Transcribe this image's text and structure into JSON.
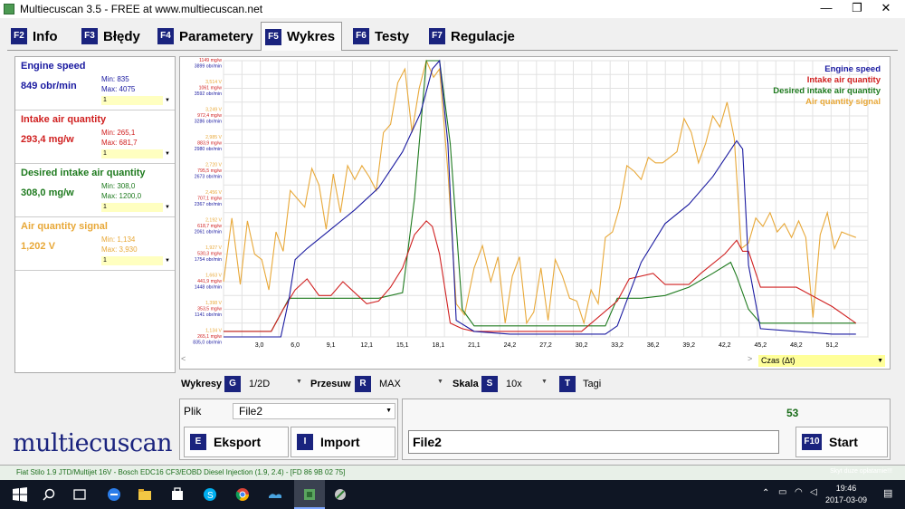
{
  "window": {
    "title": "Multiecuscan 3.5 - FREE at www.multiecuscan.net",
    "minimize": "—",
    "maximize": "❐",
    "close": "✕"
  },
  "tabs": [
    {
      "key": "F2",
      "label": "Info"
    },
    {
      "key": "F3",
      "label": "Błędy"
    },
    {
      "key": "F4",
      "label": "Parametery"
    },
    {
      "key": "F5",
      "label": "Wykres"
    },
    {
      "key": "F6",
      "label": "Testy"
    },
    {
      "key": "F7",
      "label": "Regulacje"
    }
  ],
  "sensors": [
    {
      "name": "Engine speed",
      "value": "849 obr/min",
      "min": "Min: 835",
      "max": "Max: 4075",
      "scale": "1",
      "color": "#1a1aa0"
    },
    {
      "name": "Intake air quantity",
      "value": "293,4 mg/w",
      "min": "Min: 265,1",
      "max": "Max: 681,7",
      "scale": "1",
      "color": "#d02020"
    },
    {
      "name": "Desired intake air quantity",
      "value": "308,0 mg/w",
      "min": "Min: 308,0",
      "max": "Max: 1200,0",
      "scale": "1",
      "color": "#1e7a1e"
    },
    {
      "name": "Air quantity signal",
      "value": "1,202 V",
      "min": "Min: 1,134",
      "max": "Max: 3,930",
      "scale": "1",
      "color": "#e8a838"
    }
  ],
  "chart_data": {
    "type": "line",
    "xlabel": "Czas (Δt)",
    "x_ticks": [
      "3,0",
      "6,0",
      "9,1",
      "12,1",
      "15,1",
      "18,1",
      "21,1",
      "24,2",
      "27,2",
      "30,2",
      "33,2",
      "36,2",
      "39,2",
      "42,2",
      "45,2",
      "48,2",
      "51,2"
    ],
    "y_axis_labels": [
      [
        "3,778 V",
        "1149 mg/w",
        "3899 obr/min"
      ],
      [
        "3,514 V",
        "1061 mg/w",
        "3592 obr/min"
      ],
      [
        "3,249 V",
        "972,4 mg/w",
        "3286 obr/min"
      ],
      [
        "2,985 V",
        "883,9 mg/w",
        "2980 obr/min"
      ],
      [
        "2,720 V",
        "795,5 mg/w",
        "2673 obr/min"
      ],
      [
        "2,456 V",
        "707,1 mg/w",
        "2367 obr/min"
      ],
      [
        "2,192 V",
        "618,7 mg/w",
        "2061 obr/min"
      ],
      [
        "1,927 V",
        "530,3 mg/w",
        "1754 obr/min"
      ],
      [
        "1,663 V",
        "441,9 mg/w",
        "1448 obr/min"
      ],
      [
        "1,398 V",
        "353,5 mg/w",
        "1141 obr/min"
      ],
      [
        "1,134 V",
        "265,1 mg/w",
        "835,0 obr/min"
      ]
    ],
    "x_range": [
      0,
      54
    ],
    "y_range_fraction": [
      0,
      1
    ],
    "grid": true,
    "legend_position": "top-right",
    "series": [
      {
        "name": "Engine speed",
        "color": "#1a1aa0",
        "x": [
          0,
          2,
          4,
          4.8,
          5.5,
          6,
          7,
          9,
          11,
          13,
          15,
          16.5,
          17.5,
          18.1,
          18.8,
          19.5,
          21,
          24,
          27,
          30,
          32,
          33,
          35,
          37,
          39,
          41,
          43,
          43.5,
          44,
          45,
          48,
          51,
          53
        ],
        "y": [
          0,
          0,
          0,
          0,
          0.14,
          0.28,
          0.32,
          0.39,
          0.46,
          0.54,
          0.67,
          0.81,
          0.97,
          1.0,
          0.7,
          0.06,
          0.02,
          0.01,
          0.01,
          0.01,
          0.01,
          0.04,
          0.27,
          0.41,
          0.48,
          0.58,
          0.71,
          0.68,
          0.26,
          0.03,
          0.02,
          0.01,
          0.01
        ]
      },
      {
        "name": "Intake air quantity",
        "color": "#d02020",
        "x": [
          0,
          2,
          4,
          5,
          6,
          7,
          8,
          9,
          10,
          11,
          12,
          13,
          14,
          15,
          16,
          17,
          17.5,
          18.1,
          19,
          20,
          21,
          24,
          27,
          30,
          33,
          34,
          36,
          37,
          39,
          40,
          42,
          43,
          43.5,
          44,
          45,
          48,
          51,
          53
        ],
        "y": [
          0.02,
          0.02,
          0.02,
          0.1,
          0.17,
          0.21,
          0.15,
          0.15,
          0.2,
          0.16,
          0.12,
          0.13,
          0.18,
          0.25,
          0.37,
          0.42,
          0.4,
          0.3,
          0.05,
          0.03,
          0.02,
          0.02,
          0.02,
          0.02,
          0.13,
          0.21,
          0.23,
          0.19,
          0.19,
          0.23,
          0.3,
          0.35,
          0.31,
          0.31,
          0.18,
          0.18,
          0.11,
          0.05
        ]
      },
      {
        "name": "Desired intake air quantity",
        "color": "#1e7a1e",
        "x": [
          0,
          2,
          4,
          5.5,
          6,
          8,
          11,
          13,
          15,
          16,
          17,
          17.8,
          18.1,
          19,
          20,
          21,
          24,
          27,
          30,
          32,
          33,
          35,
          37,
          39,
          41,
          42.5,
          43,
          44,
          45,
          48,
          51,
          53
        ],
        "y": [
          0.02,
          0.02,
          0.02,
          0.14,
          0.14,
          0.14,
          0.14,
          0.14,
          0.16,
          0.5,
          1.0,
          1.0,
          1.0,
          0.7,
          0.1,
          0.04,
          0.04,
          0.04,
          0.04,
          0.04,
          0.14,
          0.14,
          0.15,
          0.18,
          0.23,
          0.27,
          0.22,
          0.1,
          0.05,
          0.05,
          0.05,
          0.05
        ]
      },
      {
        "name": "Air quantity signal",
        "color": "#e8a838",
        "x": [
          0,
          0.7,
          1.4,
          2,
          2.6,
          3.2,
          3.8,
          4.4,
          5,
          5.6,
          6.2,
          6.8,
          7.4,
          8,
          8.6,
          9.2,
          9.8,
          10.4,
          11,
          11.6,
          12.2,
          12.8,
          13.4,
          14,
          14.6,
          15.2,
          15.8,
          16.4,
          17,
          17.6,
          18.1,
          18.8,
          19.5,
          20.2,
          21,
          21.7,
          22.4,
          23,
          23.6,
          24.2,
          24.8,
          25.4,
          26,
          26.6,
          27.2,
          27.8,
          28.4,
          29,
          29.6,
          30.2,
          30.8,
          31.4,
          32,
          32.6,
          33.2,
          33.8,
          34.4,
          35,
          35.6,
          36.2,
          36.8,
          37.4,
          38,
          38.6,
          39.2,
          39.8,
          40.4,
          41,
          41.6,
          42.2,
          42.8,
          43.4,
          44,
          44.6,
          45.2,
          45.8,
          46.4,
          47,
          47.6,
          48.2,
          48.8,
          49.4,
          50,
          50.6,
          51.2,
          51.8,
          52.4,
          53
        ],
        "y": [
          0.2,
          0.43,
          0.19,
          0.42,
          0.3,
          0.28,
          0.17,
          0.38,
          0.31,
          0.53,
          0.5,
          0.47,
          0.61,
          0.55,
          0.39,
          0.59,
          0.45,
          0.62,
          0.57,
          0.62,
          0.58,
          0.53,
          0.74,
          0.77,
          0.92,
          0.97,
          0.74,
          0.9,
          1.0,
          0.94,
          0.97,
          0.6,
          0.12,
          0.08,
          0.25,
          0.33,
          0.2,
          0.29,
          0.05,
          0.22,
          0.29,
          0.05,
          0.09,
          0.25,
          0.06,
          0.28,
          0.22,
          0.14,
          0.13,
          0.05,
          0.17,
          0.12,
          0.36,
          0.38,
          0.47,
          0.62,
          0.6,
          0.57,
          0.65,
          0.63,
          0.63,
          0.65,
          0.67,
          0.79,
          0.74,
          0.63,
          0.7,
          0.8,
          0.76,
          0.85,
          0.72,
          0.32,
          0.34,
          0.43,
          0.4,
          0.45,
          0.38,
          0.41,
          0.36,
          0.42,
          0.36,
          0.07,
          0.37,
          0.45,
          0.32,
          0.38,
          0.37,
          0.36
        ]
      }
    ]
  },
  "scrollbar": {
    "left": "<",
    "right": ">"
  },
  "czas": {
    "label": "Czas (Δt)",
    "arrow": "▼"
  },
  "controls": {
    "wykresy": {
      "label": "Wykresy",
      "key": "G",
      "value": "1/2D"
    },
    "przesuw": {
      "label": "Przesuw",
      "key": "R",
      "value": "MAX"
    },
    "skala": {
      "label": "Skala",
      "key": "S",
      "value": "10x"
    },
    "tagi": {
      "label": "Tagi",
      "key": "T"
    },
    "dropdown_arrow": "▼"
  },
  "file": {
    "plik_label": "Plik",
    "plik_value": "File2",
    "eksport_key": "E",
    "eksport_label": "Eksport",
    "import_key": "I",
    "import_label": "Import"
  },
  "right": {
    "count": "53",
    "file_field": "File2",
    "start_key": "F10",
    "start_label": "Start"
  },
  "logo": "multiecuscan",
  "status": {
    "text": "Fiat Stilo 1.9 JTD/Multijet 16V - Bosch EDC16 CF3/EOBD Diesel Injection (1.9, 2.4) - [FD 86 9B 02 75]",
    "right": "Skyt duze opłatamie!!!"
  },
  "taskbar": {
    "time": "19:46",
    "date": "2017-03-09"
  }
}
